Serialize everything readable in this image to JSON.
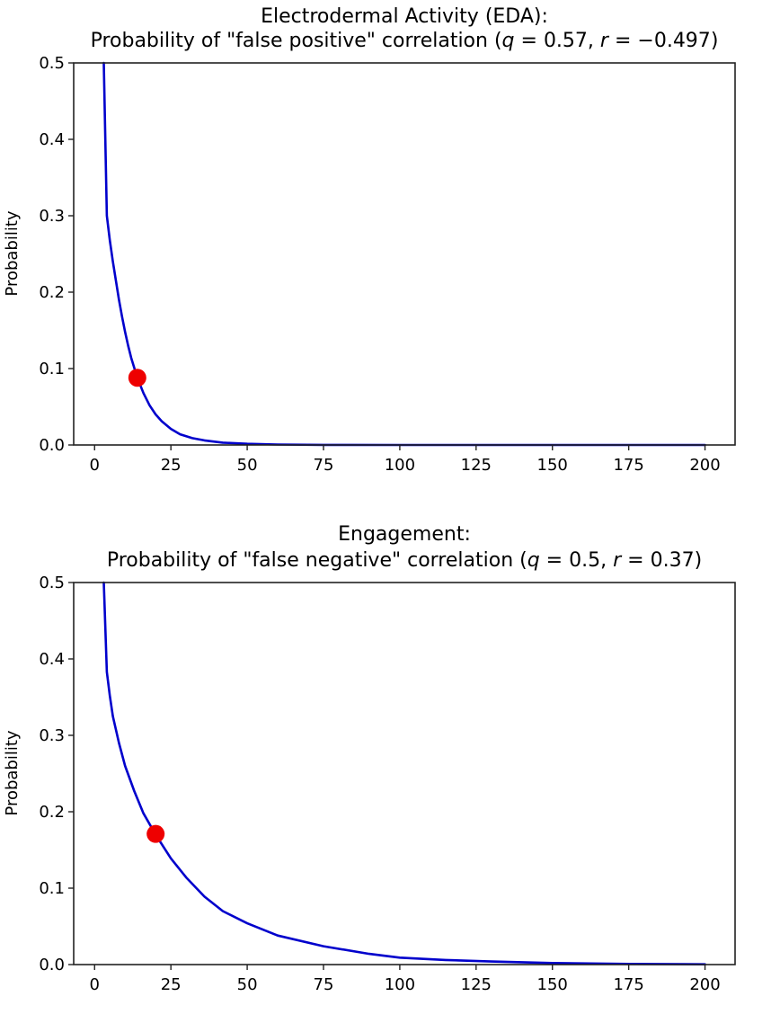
{
  "chart_data": [
    {
      "type": "line",
      "title_line1": "Electrodermal Activity (EDA):",
      "title_line2_prefix": "Probability of \"false positive\" correlation (",
      "title_params": {
        "q": "0.57",
        "r": "−0.497"
      },
      "title": "Electrodermal Activity (EDA): Probability of \"false positive\" correlation (q = 0.57, r = −0.497)",
      "xlabel": "",
      "ylabel": "Probability",
      "xlim": [
        -6.85,
        209.85
      ],
      "ylim": [
        0.0,
        0.5
      ],
      "xticks": [
        0,
        25,
        50,
        75,
        100,
        125,
        150,
        175,
        200
      ],
      "xtick_labels": [
        "0",
        "25",
        "50",
        "75",
        "100",
        "125",
        "150",
        "175",
        "200"
      ],
      "yticks": [
        0.0,
        0.1,
        0.2,
        0.3,
        0.4,
        0.5
      ],
      "ytick_labels": [
        "0.0",
        "0.1",
        "0.2",
        "0.3",
        "0.4",
        "0.5"
      ],
      "grid": false,
      "series": [
        {
          "name": "probability curve",
          "color": "#0000cc",
          "x": [
            3,
            4,
            5,
            6,
            7,
            8,
            9,
            10,
            11,
            12,
            14,
            16,
            18,
            20,
            22,
            25,
            28,
            32,
            36,
            42,
            50,
            60,
            75,
            100,
            125,
            150,
            175,
            200
          ],
          "y": [
            0.5,
            0.3,
            0.268,
            0.24,
            0.215,
            0.19,
            0.168,
            0.148,
            0.13,
            0.114,
            0.088,
            0.068,
            0.052,
            0.04,
            0.031,
            0.021,
            0.014,
            0.009,
            0.006,
            0.003,
            0.0015,
            0.0006,
            0.0001,
            0.0,
            0.0,
            0.0,
            0.0,
            0.0
          ]
        }
      ],
      "highlight_point": {
        "x": 14,
        "y": 0.088,
        "color": "#ee0000"
      }
    },
    {
      "type": "line",
      "title_line1": "Engagement:",
      "title_line2_prefix": "Probability of \"false negative\" correlation (",
      "title_params": {
        "q": "0.5",
        "r": "0.37"
      },
      "title": "Engagement: Probability of \"false negative\" correlation (q = 0.5, r = 0.37)",
      "xlabel": "",
      "ylabel": "Probability",
      "xlim": [
        -6.85,
        209.85
      ],
      "ylim": [
        0.0,
        0.5
      ],
      "xticks": [
        0,
        25,
        50,
        75,
        100,
        125,
        150,
        175,
        200
      ],
      "xtick_labels": [
        "0",
        "25",
        "50",
        "75",
        "100",
        "125",
        "150",
        "175",
        "200"
      ],
      "yticks": [
        0.0,
        0.1,
        0.2,
        0.3,
        0.4,
        0.5
      ],
      "ytick_labels": [
        "0.0",
        "0.1",
        "0.2",
        "0.3",
        "0.4",
        "0.5"
      ],
      "grid": false,
      "series": [
        {
          "name": "probability curve",
          "color": "#0000cc",
          "x": [
            3,
            4,
            5,
            6,
            8,
            10,
            13,
            16,
            20,
            25,
            30,
            36,
            42,
            50,
            60,
            75,
            90,
            100,
            115,
            130,
            150,
            175,
            200
          ],
          "y": [
            0.5,
            0.383,
            0.352,
            0.325,
            0.29,
            0.26,
            0.227,
            0.198,
            0.17,
            0.139,
            0.114,
            0.089,
            0.07,
            0.054,
            0.038,
            0.024,
            0.014,
            0.009,
            0.006,
            0.004,
            0.002,
            0.0008,
            0.0003
          ]
        }
      ],
      "highlight_point": {
        "x": 20,
        "y": 0.171,
        "color": "#ee0000"
      }
    }
  ]
}
